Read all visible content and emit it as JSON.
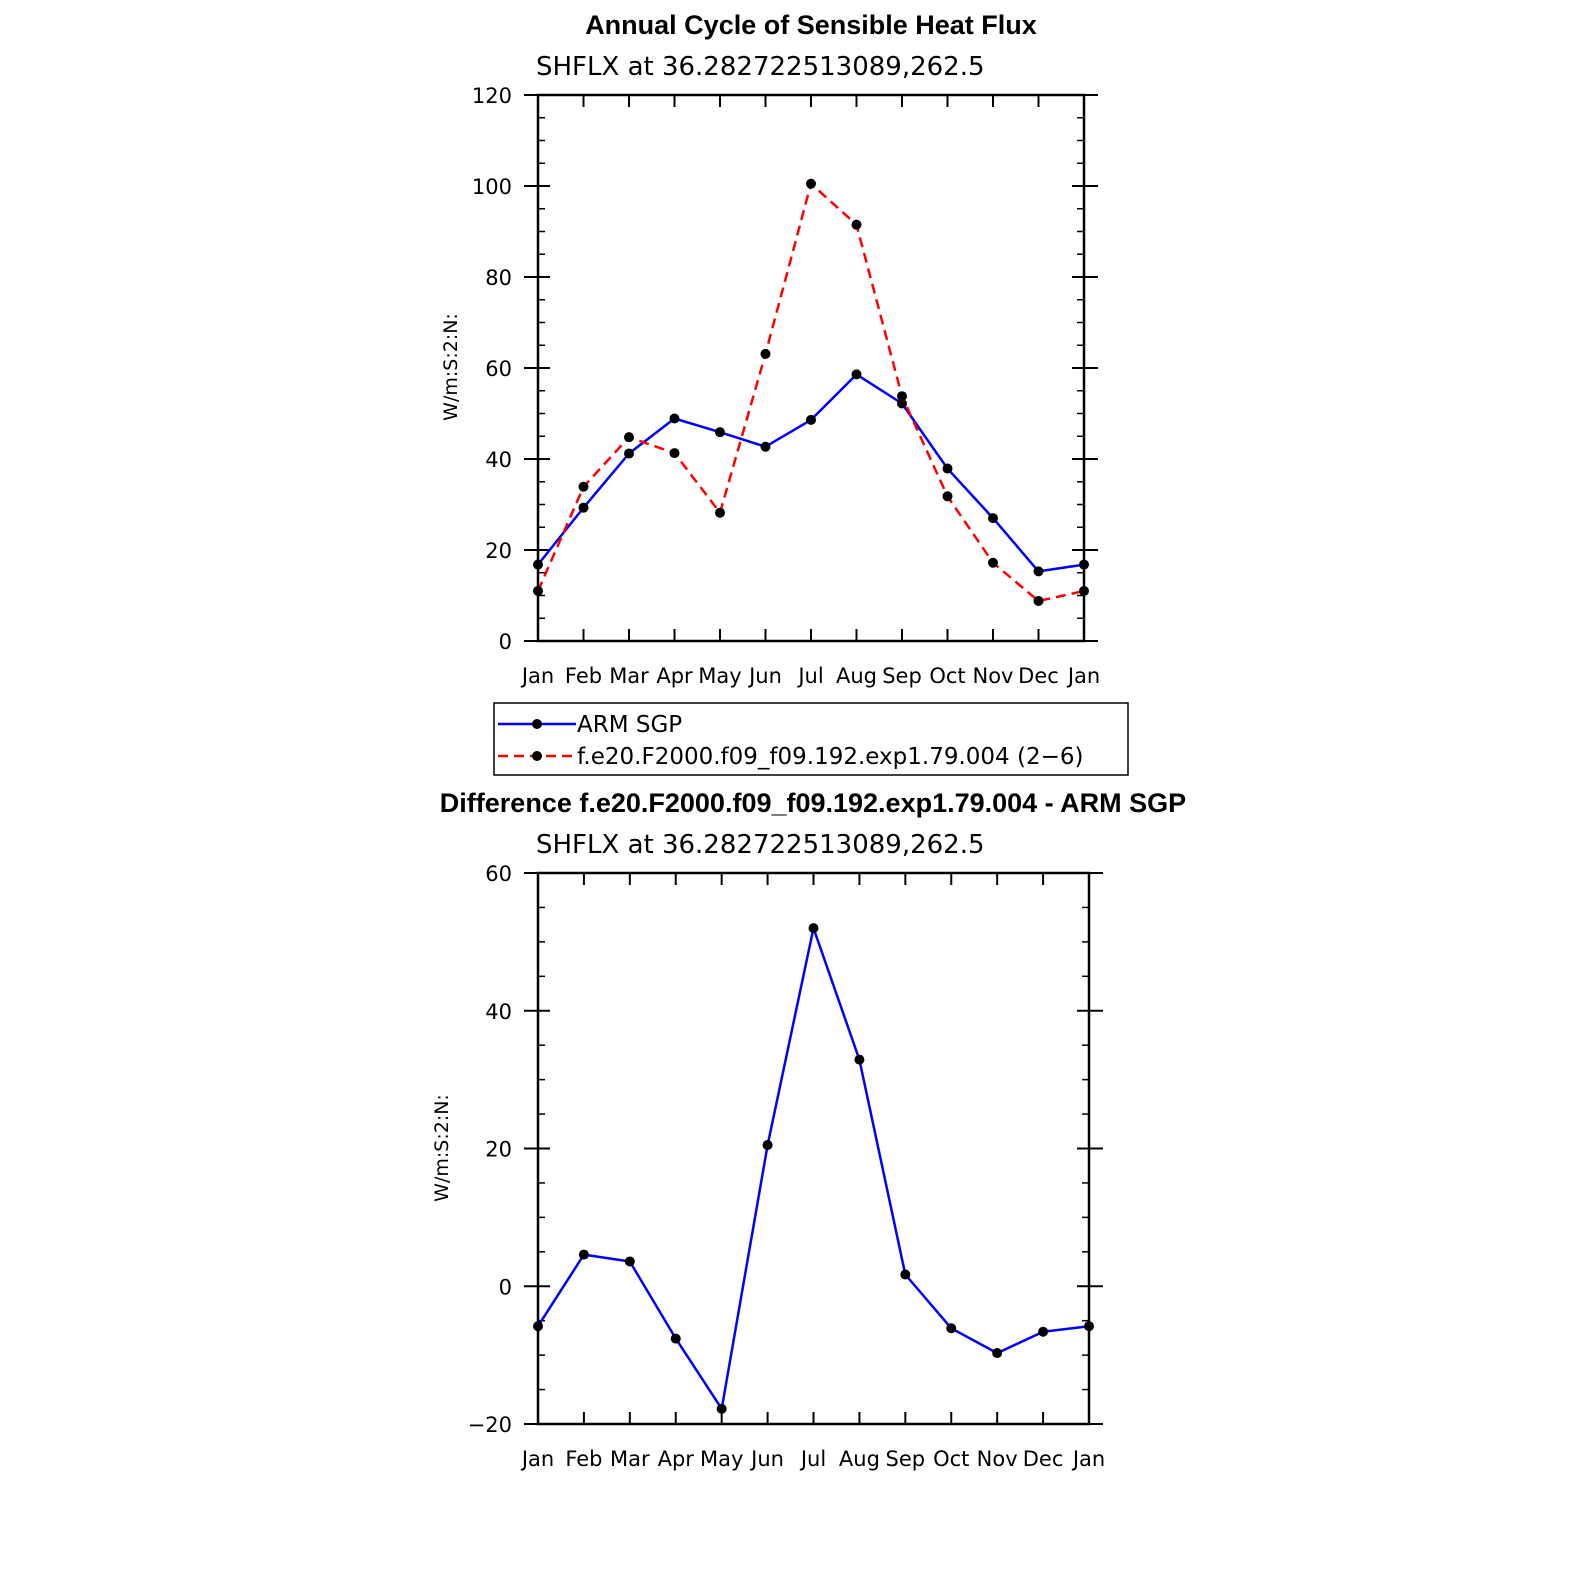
{
  "colors": {
    "obs": "#0000ff",
    "model": "#ff0000",
    "marker": "#000000",
    "axis": "#000000"
  },
  "legend": {
    "entries": [
      {
        "label": "ARM SGP",
        "color": "#0000ff",
        "style": "solid"
      },
      {
        "label": "f.e20.F2000.f09_f09.192.exp1.79.004 (2−6)",
        "color": "#ff0000",
        "style": "dashed"
      }
    ]
  },
  "chart_data": [
    {
      "type": "line",
      "title": "Annual Cycle of Sensible Heat Flux",
      "subtitle": "SHFLX at 36.282722513089,262.5",
      "xlabel": "",
      "ylabel": "W/m:S:2:N:",
      "categories": [
        "Jan",
        "Feb",
        "Mar",
        "Apr",
        "May",
        "Jun",
        "Jul",
        "Aug",
        "Sep",
        "Oct",
        "Nov",
        "Dec",
        "Jan"
      ],
      "ylim": [
        0,
        120
      ],
      "yticks": [
        0,
        20,
        40,
        60,
        80,
        100,
        120
      ],
      "series": [
        {
          "name": "ARM SGP",
          "color": "#0000ff",
          "style": "solid",
          "values": [
            16.8,
            29.3,
            41.2,
            48.9,
            45.9,
            42.7,
            48.6,
            58.6,
            52.2,
            37.9,
            27.0,
            15.3,
            16.8
          ]
        },
        {
          "name": "f.e20.F2000.f09_f09.192.exp1.79.004 (2−6)",
          "color": "#ff0000",
          "style": "dashed",
          "values": [
            11.0,
            33.9,
            44.8,
            41.3,
            28.2,
            63.1,
            100.5,
            91.5,
            53.8,
            31.8,
            17.2,
            8.8,
            11.0
          ]
        }
      ]
    },
    {
      "type": "line",
      "title": "Difference f.e20.F2000.f09_f09.192.exp1.79.004 - ARM SGP",
      "subtitle": "SHFLX at 36.282722513089,262.5",
      "xlabel": "",
      "ylabel": "W/m:S:2:N:",
      "categories": [
        "Jan",
        "Feb",
        "Mar",
        "Apr",
        "May",
        "Jun",
        "Jul",
        "Aug",
        "Sep",
        "Oct",
        "Nov",
        "Dec",
        "Jan"
      ],
      "ylim": [
        -20,
        60
      ],
      "yticks": [
        -20,
        0,
        20,
        40,
        60
      ],
      "series": [
        {
          "name": "Difference",
          "color": "#0000ff",
          "style": "solid",
          "values": [
            -5.8,
            4.6,
            3.6,
            -7.6,
            -17.8,
            20.5,
            52.0,
            32.9,
            1.7,
            -6.1,
            -9.7,
            -6.6,
            -5.8
          ]
        }
      ]
    }
  ]
}
